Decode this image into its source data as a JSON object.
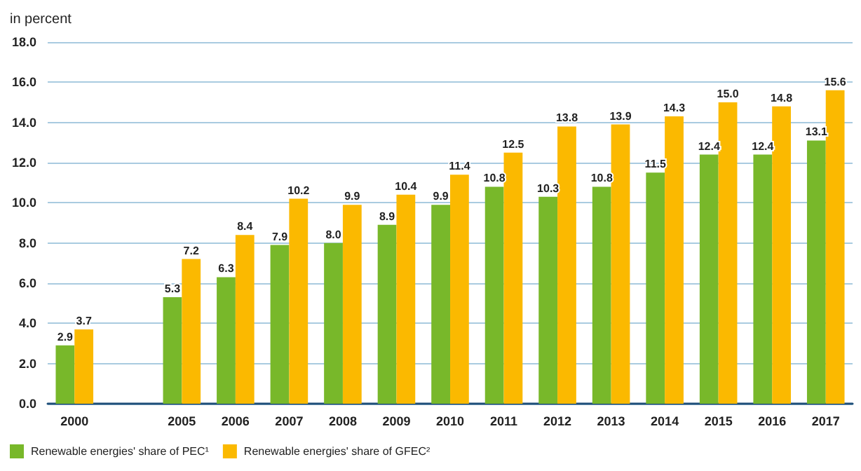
{
  "chart_data": {
    "type": "bar",
    "ylabel": "in percent",
    "categories": [
      "2000",
      null,
      "2005",
      "2006",
      "2007",
      "2008",
      "2009",
      "2010",
      "2011",
      "2012",
      "2013",
      "2014",
      "2015",
      "2016",
      "2017"
    ],
    "series": [
      {
        "name": "Renewable energies' share of PEC¹",
        "color": "#78b82a",
        "values": [
          2.9,
          null,
          5.3,
          6.3,
          7.9,
          8.0,
          8.9,
          9.9,
          10.8,
          10.3,
          10.8,
          11.5,
          12.4,
          12.4,
          13.1
        ],
        "value_labels": [
          "2.9",
          null,
          "5.3",
          "6.3",
          "7.9",
          "8.0",
          "8.9",
          "9.9",
          "10.8",
          "10.3",
          "10.8",
          "11.5",
          "12.4",
          "12.4",
          "13.1"
        ]
      },
      {
        "name": "Renewable energies' share of GFEC²",
        "color": "#fbb900",
        "values": [
          3.7,
          null,
          7.2,
          8.4,
          10.2,
          9.9,
          10.4,
          11.4,
          12.5,
          13.8,
          13.9,
          14.3,
          15.0,
          14.8,
          15.6
        ],
        "value_labels": [
          "3.7",
          null,
          "7.2",
          "8.4",
          "10.2",
          "9.9",
          "10.4",
          "11.4",
          "12.5",
          "13.8",
          "13.9",
          "14.3",
          "15.0",
          "14.8",
          "15.6"
        ]
      }
    ],
    "ylim": [
      0,
      18
    ],
    "yticks": [
      {
        "value": 0,
        "label": "0.0"
      },
      {
        "value": 2,
        "label": "2.0"
      },
      {
        "value": 4,
        "label": "4.0"
      },
      {
        "value": 6,
        "label": "6.0"
      },
      {
        "value": 8,
        "label": "8.0"
      },
      {
        "value": 10,
        "label": "10.0"
      },
      {
        "value": 12,
        "label": "12.0"
      },
      {
        "value": 14,
        "label": "14.0"
      },
      {
        "value": 16,
        "label": "16.0"
      },
      {
        "value": 18,
        "label": "18.0"
      }
    ],
    "grid": "y",
    "legend": "bottom left"
  }
}
